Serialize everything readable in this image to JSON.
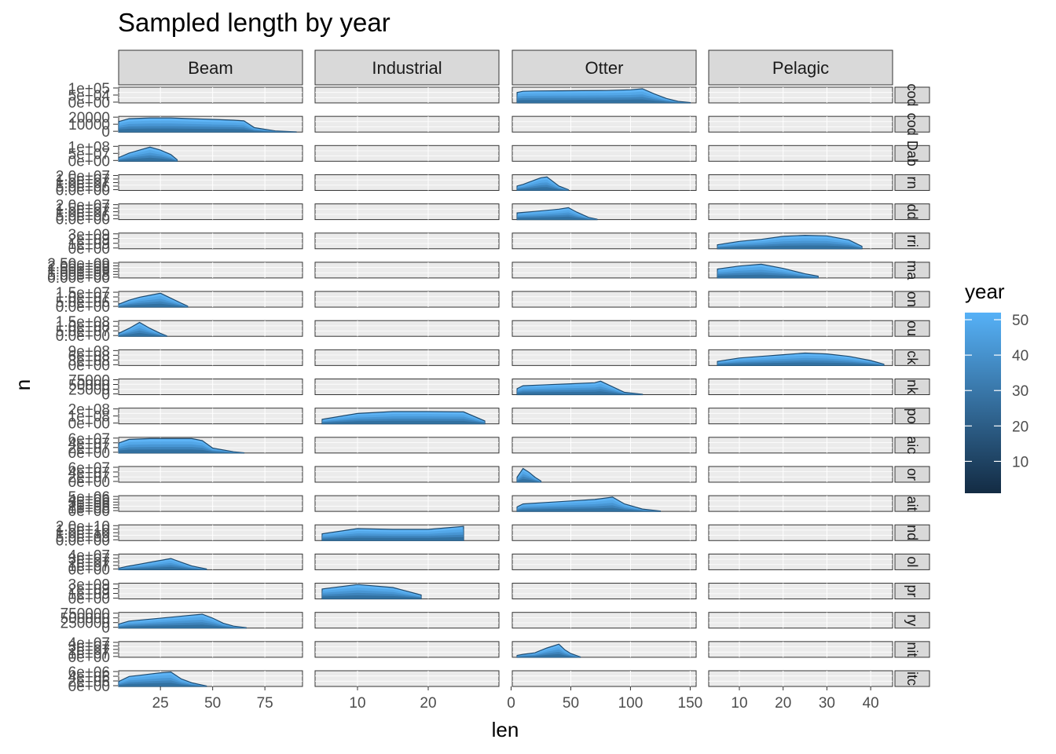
{
  "chart_data": {
    "type": "area",
    "title": "Sampled length by year",
    "xlabel": "len",
    "ylabel": "n",
    "legend": {
      "title": "year",
      "ticks": [
        10,
        20,
        30,
        40,
        50
      ],
      "range": [
        1,
        52
      ],
      "low_color": "#132B43",
      "high_color": "#56B1F7",
      "placement": "right"
    },
    "gear_columns": [
      {
        "name": "Beam",
        "xlim": [
          5,
          93
        ],
        "xticks": [
          25,
          50,
          75
        ]
      },
      {
        "name": "Industrial",
        "xlim": [
          4,
          30
        ],
        "xticks": [
          10,
          20
        ]
      },
      {
        "name": "Otter",
        "xlim": [
          1,
          155
        ],
        "xticks": [
          0,
          50,
          100,
          150
        ]
      },
      {
        "name": "Pelagic",
        "xlim": [
          3,
          45
        ],
        "xticks": [
          10,
          20,
          30,
          40
        ]
      }
    ],
    "species_rows": [
      {
        "strip": "cod",
        "ytick_labels": [
          "1e+05",
          "5e+04",
          "0e+00"
        ],
        "ymax": 100000
      },
      {
        "strip": "cod",
        "ytick_labels": [
          "20000",
          "10000",
          "0"
        ],
        "ymax": 20000
      },
      {
        "strip": "Dab",
        "ytick_labels": [
          "1e+08",
          "5e+07",
          "0e+00"
        ],
        "ymax": 100000000
      },
      {
        "strip": "rn",
        "ytick_labels": [
          "2.0e+07",
          "1.5e+07",
          "1.0e+07",
          "5.0e+06",
          "0.0e+00"
        ],
        "ymax": 20000000
      },
      {
        "strip": "dd",
        "ytick_labels": [
          "2.0e+07",
          "1.5e+07",
          "1.0e+07",
          "5.0e+06",
          "0.0e+00"
        ],
        "ymax": 20000000
      },
      {
        "strip": "rri",
        "ytick_labels": [
          "3e+09",
          "2e+09",
          "1e+09",
          "0e+00"
        ],
        "ymax": 3000000000
      },
      {
        "strip": "ma",
        "ytick_labels": [
          "2.50e+09",
          "2.00e+09",
          "1.50e+09",
          "1.00e+09",
          "5.00e+08",
          "0.00e+00"
        ],
        "ymax": 2500000000
      },
      {
        "strip": "on",
        "ytick_labels": [
          "1.5e+07",
          "1.0e+07",
          "5.0e+06",
          "0.0e+00"
        ],
        "ymax": 15000000
      },
      {
        "strip": "ou",
        "ytick_labels": [
          "1.5e+08",
          "1.0e+08",
          "5.0e+07",
          "0.0e+00"
        ],
        "ymax": 150000000
      },
      {
        "strip": "ck",
        "ytick_labels": [
          "9e+08",
          "6e+08",
          "3e+08",
          "0e+00"
        ],
        "ymax": 900000000
      },
      {
        "strip": "nk",
        "ytick_labels": [
          "75000",
          "50000",
          "25000",
          "0"
        ],
        "ymax": 75000
      },
      {
        "strip": "po",
        "ytick_labels": [
          "2e+08",
          "1e+08",
          "0e+00"
        ],
        "ymax": 200000000
      },
      {
        "strip": "aic",
        "ytick_labels": [
          "6e+07",
          "4e+07",
          "2e+07",
          "0e+00"
        ],
        "ymax": 60000000
      },
      {
        "strip": "or",
        "ytick_labels": [
          "6e+07",
          "4e+07",
          "2e+07",
          "0e+00"
        ],
        "ymax": 60000000
      },
      {
        "strip": "ait",
        "ytick_labels": [
          "5e+06",
          "4e+06",
          "3e+06",
          "2e+06",
          "1e+06",
          "0e+00"
        ],
        "ymax": 5000000
      },
      {
        "strip": "nd",
        "ytick_labels": [
          "2.0e+10",
          "1.5e+10",
          "1.0e+10",
          "5.0e+09",
          "0.0e+00"
        ],
        "ymax": 20000000000
      },
      {
        "strip": "ol",
        "ytick_labels": [
          "4e+07",
          "3e+07",
          "2e+07",
          "1e+07",
          "0e+00"
        ],
        "ymax": 40000000
      },
      {
        "strip": "pr",
        "ytick_labels": [
          "3e+09",
          "2e+09",
          "1e+09",
          "0e+00"
        ],
        "ymax": 3000000000
      },
      {
        "strip": "ry",
        "ytick_labels": [
          "750000",
          "500000",
          "250000",
          "0"
        ],
        "ymax": 750000
      },
      {
        "strip": "nit",
        "ytick_labels": [
          "4e+07",
          "3e+07",
          "2e+07",
          "1e+07",
          "0e+00"
        ],
        "ymax": 40000000
      },
      {
        "strip": "itc",
        "ytick_labels": [
          "6e+06",
          "4e+06",
          "2e+06",
          "0e+00"
        ],
        "ymax": 6000000
      }
    ],
    "series": [
      {
        "row": 0,
        "col": 2,
        "x": [
          5,
          10,
          20,
          40,
          60,
          80,
          100,
          110,
          120,
          130,
          140,
          150
        ],
        "y": [
          70000,
          78000,
          80000,
          81000,
          82000,
          83000,
          88000,
          95000,
          60000,
          30000,
          10000,
          2000
        ]
      },
      {
        "row": 1,
        "col": 0,
        "x": [
          5,
          10,
          20,
          30,
          40,
          50,
          60,
          65,
          70,
          80,
          90
        ],
        "y": [
          14000,
          18000,
          19000,
          19000,
          18000,
          17000,
          16000,
          15000,
          6000,
          1500,
          200
        ]
      },
      {
        "row": 2,
        "col": 0,
        "x": [
          5,
          10,
          15,
          20,
          25,
          30,
          33
        ],
        "y": [
          25000000,
          55000000,
          75000000,
          95000000,
          75000000,
          45000000,
          10000000
        ]
      },
      {
        "row": 3,
        "col": 2,
        "x": [
          5,
          10,
          20,
          25,
          30,
          40,
          48
        ],
        "y": [
          6000000,
          8000000,
          14000000,
          17000000,
          18000000,
          6000000,
          1000000
        ]
      },
      {
        "row": 4,
        "col": 2,
        "x": [
          5,
          20,
          40,
          48,
          55,
          65,
          72
        ],
        "y": [
          9000000,
          11000000,
          14000000,
          16000000,
          10000000,
          3000000,
          500000
        ]
      },
      {
        "row": 5,
        "col": 3,
        "x": [
          5,
          10,
          15,
          20,
          25,
          30,
          35,
          38
        ],
        "y": [
          800000000,
          1500000000,
          1900000000,
          2500000000,
          2700000000,
          2600000000,
          1800000000,
          500000000
        ]
      },
      {
        "row": 6,
        "col": 3,
        "x": [
          5,
          10,
          15,
          20,
          25,
          28
        ],
        "y": [
          1500000000,
          2000000000,
          2300000000,
          1600000000,
          700000000,
          300000000
        ]
      },
      {
        "row": 7,
        "col": 0,
        "x": [
          5,
          10,
          15,
          20,
          25,
          30,
          35,
          38
        ],
        "y": [
          3000000,
          7000000,
          10000000,
          12000000,
          14000000,
          9000000,
          4000000,
          1000000
        ]
      },
      {
        "row": 8,
        "col": 0,
        "x": [
          5,
          10,
          15,
          20,
          25,
          28
        ],
        "y": [
          30000000,
          80000000,
          140000000,
          80000000,
          30000000,
          5000000
        ]
      },
      {
        "row": 9,
        "col": 3,
        "x": [
          5,
          10,
          15,
          20,
          25,
          30,
          35,
          40,
          43
        ],
        "y": [
          250000000,
          450000000,
          550000000,
          650000000,
          750000000,
          700000000,
          550000000,
          300000000,
          80000000
        ]
      },
      {
        "row": 10,
        "col": 2,
        "x": [
          5,
          10,
          30,
          50,
          70,
          75,
          85,
          95,
          110
        ],
        "y": [
          30000,
          45000,
          50000,
          55000,
          60000,
          68000,
          40000,
          12000,
          2000
        ]
      },
      {
        "row": 11,
        "col": 1,
        "x": [
          5,
          10,
          15,
          20,
          25,
          28
        ],
        "y": [
          60000000,
          140000000,
          165000000,
          165000000,
          160000000,
          40000000
        ]
      },
      {
        "row": 12,
        "col": 0,
        "x": [
          5,
          10,
          20,
          30,
          40,
          45,
          50,
          60,
          65
        ],
        "y": [
          40000000,
          55000000,
          58000000,
          58000000,
          58000000,
          50000000,
          20000000,
          5000000,
          1000000
        ]
      },
      {
        "row": 13,
        "col": 2,
        "x": [
          5,
          10,
          15,
          20,
          25
        ],
        "y": [
          20000000,
          55000000,
          40000000,
          20000000,
          5000000
        ]
      },
      {
        "row": 14,
        "col": 2,
        "x": [
          5,
          10,
          30,
          50,
          70,
          85,
          95,
          110,
          125
        ],
        "y": [
          1500000,
          2500000,
          3000000,
          3500000,
          4000000,
          4800000,
          2500000,
          800000,
          100000
        ]
      },
      {
        "row": 15,
        "col": 1,
        "x": [
          5,
          10,
          15,
          20,
          25
        ],
        "y": [
          9000000000,
          16000000000,
          15000000000,
          15000000000,
          19000000000
        ]
      },
      {
        "row": 16,
        "col": 0,
        "x": [
          5,
          10,
          15,
          20,
          25,
          30,
          35,
          40,
          47
        ],
        "y": [
          4000000,
          10000000,
          15000000,
          20000000,
          25000000,
          30000000,
          20000000,
          10000000,
          2000000
        ]
      },
      {
        "row": 17,
        "col": 1,
        "x": [
          5,
          10,
          15,
          19
        ],
        "y": [
          2000000000,
          2900000000,
          2300000000,
          800000000
        ]
      },
      {
        "row": 18,
        "col": 0,
        "x": [
          5,
          10,
          20,
          30,
          40,
          45,
          50,
          55,
          60,
          66
        ],
        "y": [
          200000,
          350000,
          450000,
          550000,
          650000,
          700000,
          500000,
          250000,
          100000,
          20000
        ]
      },
      {
        "row": 19,
        "col": 2,
        "x": [
          5,
          10,
          20,
          30,
          40,
          45,
          50,
          58
        ],
        "y": [
          5000000,
          8000000,
          12000000,
          25000000,
          35000000,
          20000000,
          10000000,
          1000000
        ]
      },
      {
        "row": 20,
        "col": 0,
        "x": [
          5,
          10,
          15,
          20,
          25,
          30,
          35,
          40,
          47
        ],
        "y": [
          2000000,
          4000000,
          4500000,
          5000000,
          5500000,
          5800000,
          3000000,
          1500000,
          200000
        ]
      }
    ]
  }
}
